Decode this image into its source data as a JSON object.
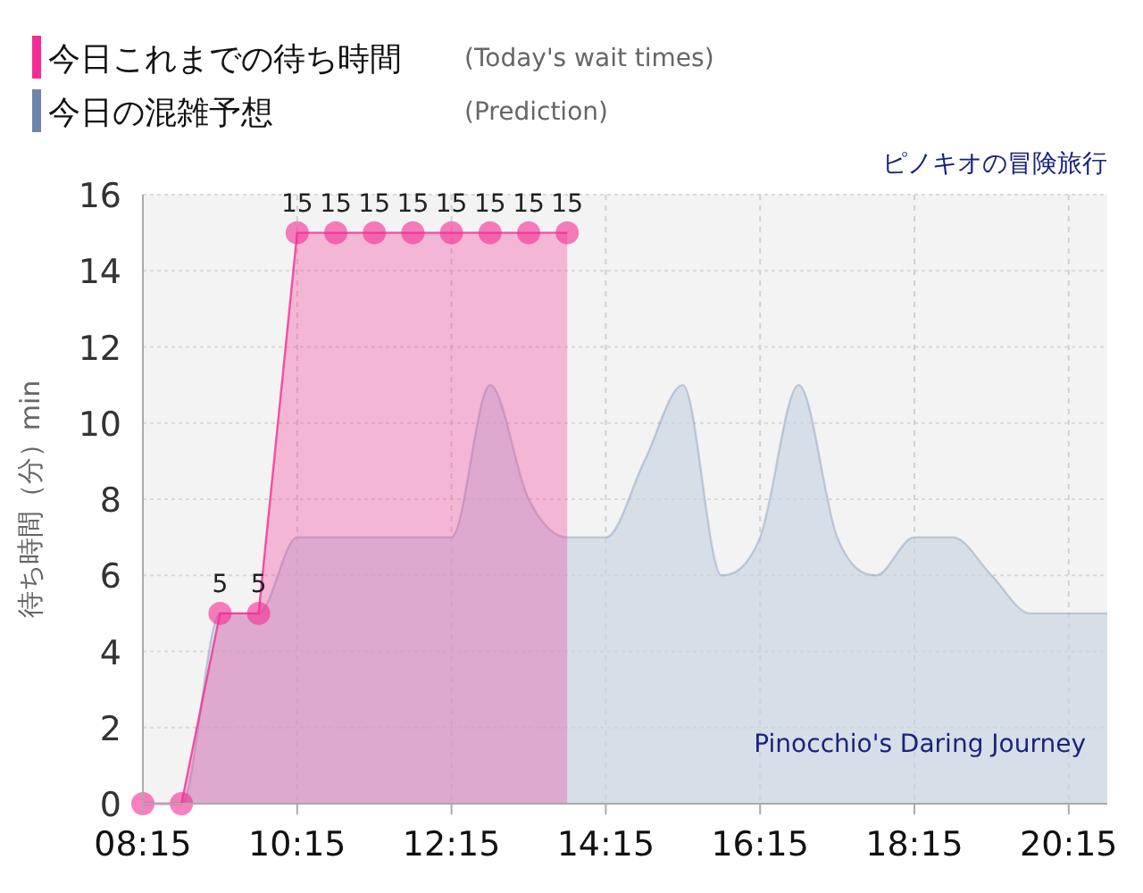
{
  "chart_data": {
    "type": "area",
    "title": "ピノキオの冒険旅行",
    "subtitle": "Pinocchio's Daring Journey",
    "ylabel": "待ち時間（分）min",
    "annotations": [
      "(Today's wait times)",
      "(Prediction)"
    ],
    "legend": "top left",
    "grid": true,
    "xlim": [
      8.25,
      20.75
    ],
    "xticks": [
      {
        "value": 8.25,
        "label": "08:15"
      },
      {
        "value": 10.25,
        "label": "10:15"
      },
      {
        "value": 12.25,
        "label": "12:15"
      },
      {
        "value": 14.25,
        "label": "14:15"
      },
      {
        "value": 16.25,
        "label": "16:15"
      },
      {
        "value": 18.25,
        "label": "18:15"
      },
      {
        "value": 20.25,
        "label": "20:15"
      }
    ],
    "ylim": [
      0,
      16
    ],
    "yticks": [
      0,
      2,
      4,
      6,
      8,
      10,
      12,
      14,
      16
    ],
    "series": [
      {
        "name": "今日の混雑予想",
        "color": "#6d85ad",
        "x": [
          8.25,
          8.75,
          9.25,
          9.75,
          10.25,
          10.75,
          11.25,
          11.75,
          12.25,
          12.75,
          13.25,
          13.75,
          14.25,
          14.75,
          15.25,
          15.75,
          16.25,
          16.75,
          17.25,
          17.75,
          18.25,
          18.75,
          19.25,
          19.75,
          20.25,
          20.75
        ],
        "values": [
          0,
          0,
          5,
          5,
          7,
          7,
          7,
          7,
          7,
          11,
          8,
          7,
          7,
          9,
          11,
          6,
          7,
          11,
          7,
          6,
          7,
          7,
          6,
          5,
          5,
          5
        ]
      },
      {
        "name": "今日これまでの待ち時間",
        "color": "#f52c93",
        "marker": "circle",
        "value_labels": [
          null,
          null,
          "5",
          "5",
          "15",
          "15",
          "15",
          "15",
          "15",
          "15",
          "15",
          "15"
        ],
        "x": [
          8.25,
          8.75,
          9.25,
          9.75,
          10.25,
          10.75,
          11.25,
          11.75,
          12.25,
          12.75,
          13.25,
          13.75
        ],
        "values": [
          0,
          0,
          5,
          5,
          15,
          15,
          15,
          15,
          15,
          15,
          15,
          15
        ]
      }
    ]
  }
}
